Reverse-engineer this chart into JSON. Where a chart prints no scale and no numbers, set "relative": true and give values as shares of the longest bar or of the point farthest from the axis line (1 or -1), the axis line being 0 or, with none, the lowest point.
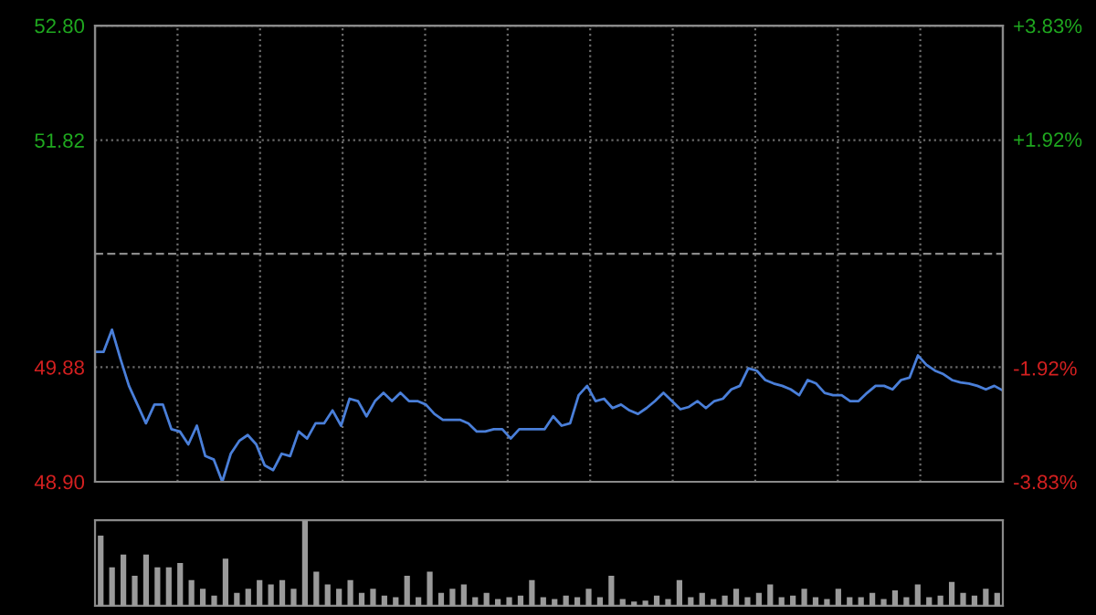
{
  "chart_data": [
    {
      "type": "line",
      "categories": [
        null,
        null,
        null,
        null,
        null,
        null,
        null,
        null,
        null,
        null,
        null,
        null,
        null,
        null,
        null,
        null,
        null,
        null,
        null,
        null,
        null,
        null,
        null,
        null,
        null,
        null,
        null,
        null,
        null,
        null,
        null,
        null,
        null,
        null,
        null,
        null,
        null,
        null,
        null,
        null,
        null,
        null,
        null,
        null,
        null,
        null,
        null,
        null,
        null,
        null,
        null,
        null,
        null,
        null,
        null,
        null,
        null,
        null,
        null,
        null,
        null,
        null,
        null,
        null,
        null,
        null,
        null,
        null,
        null,
        null,
        null,
        null,
        null,
        null,
        null,
        null,
        null,
        null,
        null,
        null,
        null,
        null,
        null,
        null,
        null,
        null,
        null,
        null,
        null,
        null,
        null,
        null,
        null,
        null,
        null,
        null,
        null,
        null,
        null,
        null,
        null,
        null,
        null,
        null,
        null,
        null,
        null,
        null
      ],
      "series": [
        {
          "color": "#4a7fd9",
          "values": [
            50.01,
            50.01,
            50.2,
            49.95,
            49.72,
            49.56,
            49.4,
            49.56,
            49.56,
            49.35,
            49.33,
            49.22,
            49.38,
            49.12,
            49.09,
            48.9,
            49.14,
            49.25,
            49.3,
            49.22,
            49.04,
            49.0,
            49.14,
            49.12,
            49.33,
            49.27,
            49.4,
            49.4,
            49.51,
            49.38,
            49.61,
            49.59,
            49.46,
            49.59,
            49.66,
            49.59,
            49.66,
            49.59,
            49.59,
            49.56,
            49.48,
            49.43,
            49.43,
            49.43,
            49.4,
            49.33,
            49.33,
            49.35,
            49.35,
            49.27,
            49.35,
            49.35,
            49.35,
            49.35,
            49.46,
            49.38,
            49.4,
            49.64,
            49.72,
            49.59,
            49.61,
            49.53,
            49.56,
            49.51,
            49.48,
            49.53,
            49.59,
            49.66,
            49.59,
            49.52,
            49.54,
            49.59,
            49.53,
            49.59,
            49.61,
            49.69,
            49.72,
            49.87,
            49.85,
            49.77,
            49.74,
            49.72,
            49.69,
            49.64,
            49.77,
            49.74,
            49.66,
            49.64,
            49.64,
            49.59,
            49.59,
            49.66,
            49.72,
            49.72,
            49.69,
            49.77,
            49.79,
            49.98,
            49.9,
            49.85,
            49.82,
            49.77,
            49.75,
            49.74,
            49.72,
            49.69,
            49.72,
            49.68
          ]
        }
      ],
      "ylim": [
        48.9,
        52.8
      ],
      "yticks": [
        {
          "value": 48.9,
          "label": "48.90"
        },
        49.88,
        51.82,
        {
          "value": 52.8,
          "label": "52.80"
        }
      ],
      "y2lim": [
        -3.83,
        3.83
      ],
      "y2ticks": [
        {
          "value": -3.83,
          "label": "-3.83%"
        },
        {
          "value": -1.92,
          "label": "-1.92%"
        },
        {
          "value": 1.92,
          "label": "+1.92%"
        },
        {
          "value": 3.83,
          "label": "+3.83%"
        }
      ],
      "ref_lines": [
        {
          "axis": "y",
          "value": 50.85,
          "color": "#8a8a8a",
          "line_style": "dashed"
        }
      ],
      "grid": true,
      "tick_labels": "y",
      "legend": false
    },
    {
      "type": "bar",
      "relative": true,
      "categories": [
        null,
        null,
        null,
        null,
        null,
        null,
        null,
        null,
        null,
        null,
        null,
        null,
        null,
        null,
        null,
        null,
        null,
        null,
        null,
        null,
        null,
        null,
        null,
        null,
        null,
        null,
        null,
        null,
        null,
        null,
        null,
        null,
        null,
        null,
        null,
        null,
        null,
        null,
        null,
        null,
        null,
        null,
        null,
        null,
        null,
        null,
        null,
        null,
        null,
        null,
        null,
        null,
        null,
        null,
        null,
        null,
        null,
        null,
        null,
        null,
        null,
        null,
        null,
        null,
        null,
        null,
        null,
        null,
        null,
        null,
        null,
        null,
        null,
        null,
        null,
        null,
        null,
        null,
        null,
        null
      ],
      "series": [
        {
          "color": "#9a9a9a",
          "values": [
            0.82,
            0.45,
            0.6,
            0.35,
            0.6,
            0.45,
            0.45,
            0.5,
            0.3,
            0.2,
            0.12,
            0.55,
            0.15,
            0.2,
            0.3,
            0.25,
            0.3,
            0.2,
            1.0,
            0.4,
            0.25,
            0.2,
            0.3,
            0.15,
            0.2,
            0.12,
            0.1,
            0.35,
            0.1,
            0.4,
            0.15,
            0.2,
            0.25,
            0.1,
            0.15,
            0.08,
            0.1,
            0.12,
            0.3,
            0.1,
            0.08,
            0.12,
            0.1,
            0.2,
            0.1,
            0.35,
            0.08,
            0.05,
            0.06,
            0.12,
            0.08,
            0.3,
            0.1,
            0.15,
            0.08,
            0.12,
            0.2,
            0.1,
            0.15,
            0.25,
            0.1,
            0.12,
            0.2,
            0.1,
            0.08,
            0.2,
            0.1,
            0.1,
            0.15,
            0.08,
            0.18,
            0.1,
            0.25,
            0.1,
            0.12,
            0.28,
            0.15,
            0.12,
            0.2,
            0.15
          ]
        }
      ],
      "grid": false,
      "tick_labels": false,
      "legend": false
    }
  ]
}
